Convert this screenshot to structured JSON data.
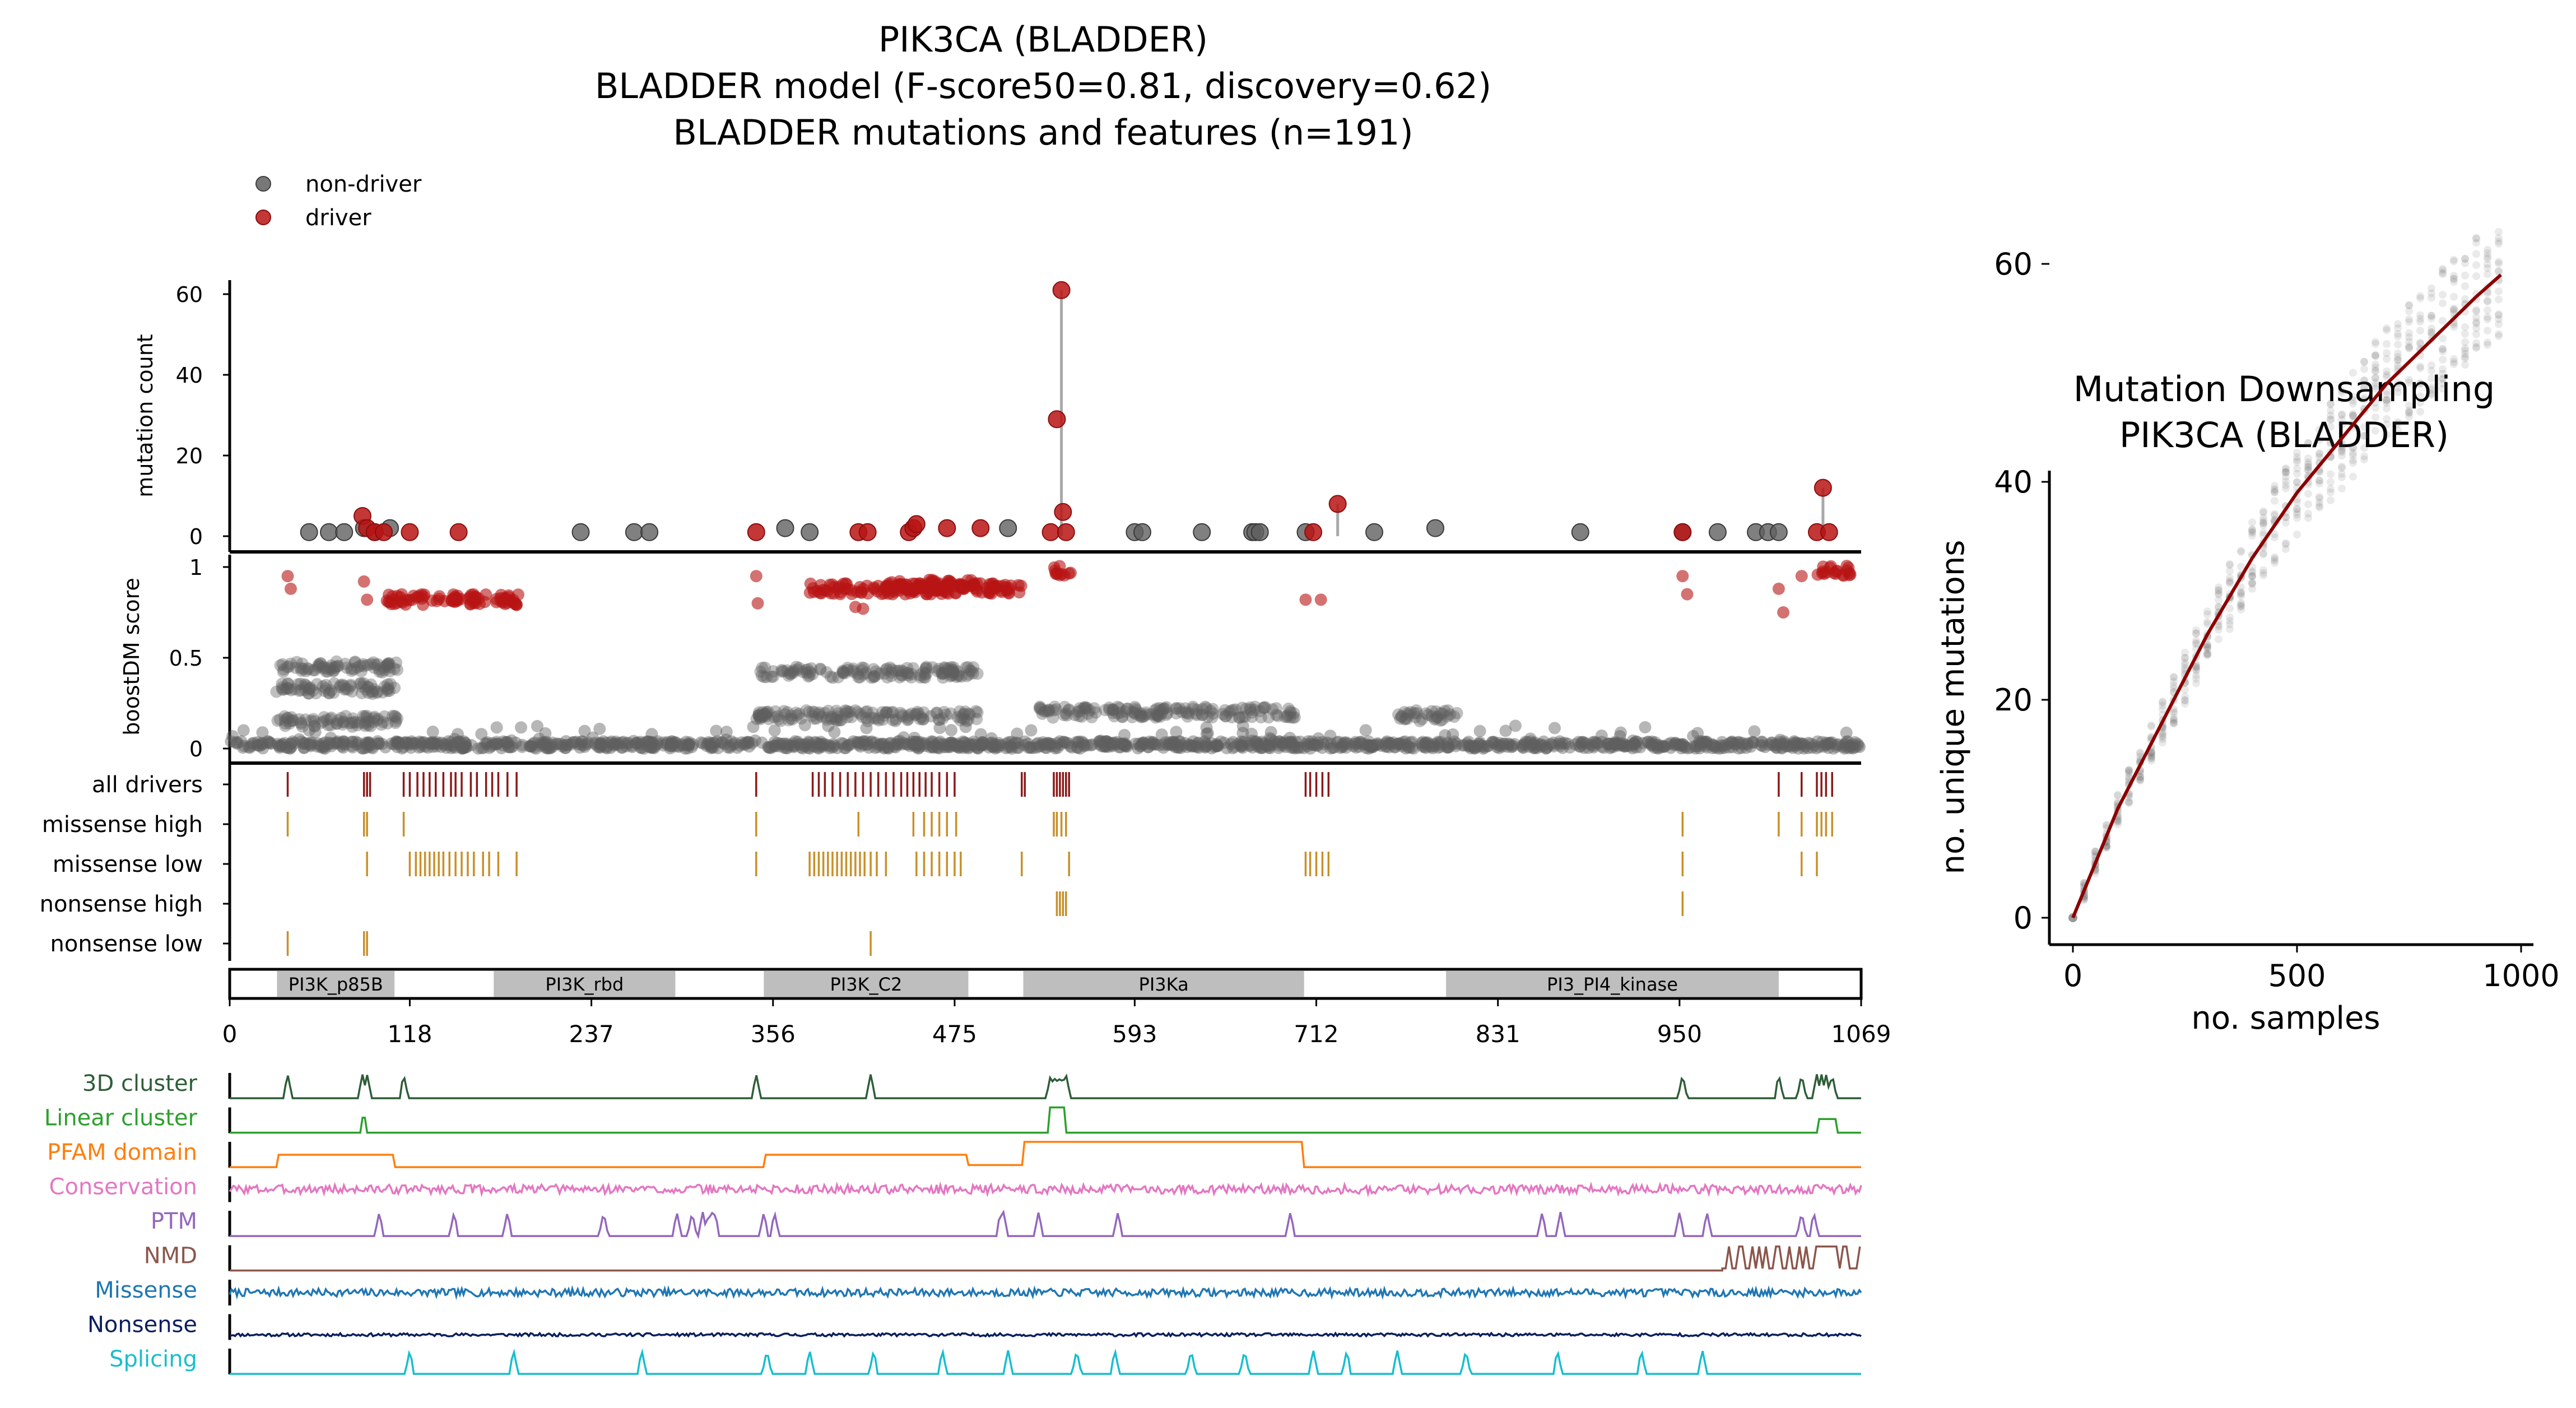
{
  "main_title": {
    "line1": "PIK3CA (BLADDER)",
    "line2": "BLADDER model (F-score50=0.81, discovery=0.62)",
    "line3": "BLADDER mutations and features (n=191)"
  },
  "legend": {
    "placement": "top-left",
    "items": [
      {
        "label": "non-driver",
        "color": "#606060"
      },
      {
        "label": "driver",
        "color": "#b81414"
      }
    ]
  },
  "colors": {
    "driver": "#b81414",
    "non_driver": "#606060",
    "driver_tick": "#8b1a1a",
    "feature_tick": "#c8902a",
    "domain_fill": "#bebebe",
    "fit_line": "#8b0000"
  },
  "chart_data": [
    {
      "id": "mutation-count",
      "type": "scatter",
      "ylabel": "mutation count",
      "ylim": [
        0,
        62
      ],
      "yticks": [
        "0",
        "20",
        "40",
        "60"
      ],
      "xlim": [
        0,
        1069
      ],
      "non_driver_points": [
        [
          52,
          1
        ],
        [
          65,
          1
        ],
        [
          75,
          1
        ],
        [
          88,
          2
        ],
        [
          95,
          1
        ],
        [
          105,
          2
        ],
        [
          230,
          1
        ],
        [
          265,
          1
        ],
        [
          275,
          1
        ],
        [
          364,
          2
        ],
        [
          380,
          1
        ],
        [
          510,
          2
        ],
        [
          593,
          1
        ],
        [
          598,
          1
        ],
        [
          637,
          1
        ],
        [
          670,
          1
        ],
        [
          672,
          1
        ],
        [
          675,
          1
        ],
        [
          705,
          1
        ],
        [
          750,
          1
        ],
        [
          790,
          2
        ],
        [
          885,
          1
        ],
        [
          952,
          1
        ],
        [
          975,
          1
        ],
        [
          1000,
          1
        ],
        [
          1008,
          1
        ],
        [
          1015,
          1
        ]
      ],
      "driver_points": [
        [
          87,
          5
        ],
        [
          90,
          2
        ],
        [
          95,
          1
        ],
        [
          101,
          1
        ],
        [
          118,
          1
        ],
        [
          150,
          1
        ],
        [
          345,
          1
        ],
        [
          412,
          1
        ],
        [
          418,
          1
        ],
        [
          445,
          1
        ],
        [
          448,
          2
        ],
        [
          450,
          3
        ],
        [
          470,
          2
        ],
        [
          492,
          2
        ],
        [
          538,
          1
        ],
        [
          542,
          29
        ],
        [
          545,
          61
        ],
        [
          546,
          6
        ],
        [
          548,
          1
        ],
        [
          710,
          1
        ],
        [
          726,
          8
        ],
        [
          952,
          1
        ],
        [
          1040,
          1
        ],
        [
          1044,
          12
        ],
        [
          1048,
          1
        ]
      ],
      "stems": [
        {
          "x": 545,
          "y": 61
        },
        {
          "x": 726,
          "y": 8
        },
        {
          "x": 1044,
          "y": 12
        }
      ]
    },
    {
      "id": "boostdm-score",
      "type": "scatter",
      "ylabel": "boostDM score",
      "ylim": [
        0,
        1
      ],
      "yticks": [
        "0",
        "0.5",
        "1"
      ],
      "xlim": [
        0,
        1069
      ],
      "clusters": [
        {
          "x0": 30,
          "x1": 110,
          "y": 0.45,
          "kind": "non-driver"
        },
        {
          "x0": 30,
          "x1": 110,
          "y": 0.33,
          "kind": "non-driver"
        },
        {
          "x0": 30,
          "x1": 110,
          "y": 0.15,
          "kind": "non-driver"
        },
        {
          "x0": 345,
          "x1": 490,
          "y": 0.42,
          "kind": "non-driver"
        },
        {
          "x0": 345,
          "x1": 490,
          "y": 0.18,
          "kind": "non-driver"
        },
        {
          "x0": 530,
          "x1": 700,
          "y": 0.2,
          "kind": "non-driver"
        },
        {
          "x0": 765,
          "x1": 805,
          "y": 0.18,
          "kind": "non-driver"
        },
        {
          "x0": 100,
          "x1": 190,
          "y": 0.82,
          "kind": "driver"
        },
        {
          "x0": 380,
          "x1": 520,
          "y": 0.88,
          "kind": "driver"
        },
        {
          "x0": 430,
          "x1": 490,
          "y": 0.9,
          "kind": "driver"
        },
        {
          "x0": 540,
          "x1": 552,
          "y": 0.98,
          "kind": "driver"
        },
        {
          "x0": 1040,
          "x1": 1062,
          "y": 0.98,
          "kind": "driver"
        }
      ],
      "driver_points": [
        [
          38,
          0.95
        ],
        [
          40,
          0.88
        ],
        [
          88,
          0.92
        ],
        [
          90,
          0.82
        ],
        [
          345,
          0.95
        ],
        [
          346,
          0.8
        ],
        [
          410,
          0.78
        ],
        [
          415,
          0.77
        ],
        [
          705,
          0.82
        ],
        [
          715,
          0.82
        ],
        [
          952,
          0.95
        ],
        [
          955,
          0.85
        ],
        [
          1015,
          0.88
        ],
        [
          1018,
          0.75
        ],
        [
          1030,
          0.95
        ]
      ]
    },
    {
      "id": "feature-ticks",
      "type": "table",
      "rows": [
        {
          "label": "all drivers",
          "color": "#8b1a1a",
          "positions": [
            38,
            88,
            90,
            92,
            114,
            118,
            123,
            127,
            131,
            135,
            140,
            145,
            148,
            152,
            158,
            162,
            168,
            172,
            176,
            182,
            188,
            345,
            382,
            386,
            390,
            395,
            400,
            405,
            410,
            415,
            420,
            425,
            430,
            435,
            440,
            444,
            448,
            452,
            456,
            460,
            465,
            470,
            475,
            519,
            521,
            540,
            542,
            544,
            546,
            548,
            550,
            705,
            708,
            712,
            716,
            720,
            1015,
            1030,
            1040,
            1043,
            1046,
            1050
          ]
        },
        {
          "label": "missense high",
          "color": "#c8902a",
          "positions": [
            38,
            88,
            90,
            114,
            345,
            412,
            448,
            455,
            460,
            465,
            470,
            476,
            540,
            542,
            545,
            548,
            952,
            1015,
            1030,
            1040,
            1043,
            1046,
            1050
          ]
        },
        {
          "label": "missense low",
          "color": "#c8902a",
          "positions": [
            90,
            118,
            122,
            125,
            128,
            131,
            134,
            137,
            140,
            144,
            148,
            152,
            156,
            160,
            166,
            170,
            176,
            188,
            345,
            380,
            383,
            386,
            389,
            392,
            395,
            398,
            401,
            404,
            407,
            410,
            413,
            416,
            420,
            424,
            430,
            450,
            455,
            460,
            465,
            470,
            475,
            479,
            519,
            550,
            705,
            708,
            712,
            716,
            720,
            952,
            1030,
            1040
          ]
        },
        {
          "label": "nonsense high",
          "color": "#c8902a",
          "positions": [
            542,
            544,
            546,
            548,
            952
          ]
        },
        {
          "label": "nonsense low",
          "color": "#c8902a",
          "positions": [
            38,
            88,
            90,
            420
          ]
        }
      ]
    },
    {
      "id": "domains",
      "type": "bar",
      "xlim": [
        0,
        1069
      ],
      "xticks": [
        "0",
        "118",
        "237",
        "356",
        "475",
        "593",
        "712",
        "831",
        "950",
        "1069"
      ],
      "domains": [
        {
          "name": "PI3K_p85B",
          "start": 31,
          "end": 108
        },
        {
          "name": "PI3K_rbd",
          "start": 173,
          "end": 292
        },
        {
          "name": "PI3K_C2",
          "start": 350,
          "end": 484
        },
        {
          "name": "PI3Ka",
          "start": 520,
          "end": 704
        },
        {
          "name": "PI3_PI4_kinase",
          "start": 797,
          "end": 1015
        }
      ]
    },
    {
      "id": "feature-tracks",
      "type": "line",
      "xlim": [
        0,
        1069
      ],
      "tracks": [
        {
          "name": "3D cluster",
          "color": "#2e5e38",
          "kind": "spikes",
          "spikes": [
            38,
            87,
            90,
            114,
            345,
            420,
            538,
            540,
            543,
            546,
            548,
            952,
            1015,
            1030,
            1040,
            1043,
            1046,
            1050
          ]
        },
        {
          "name": "Linear cluster",
          "color": "#2ca02c",
          "kind": "steps",
          "steps": [
            [
              87,
              89,
              0.6
            ],
            [
              537,
              548,
              1.0
            ],
            [
              1040,
              1053,
              0.55
            ]
          ]
        },
        {
          "name": "PFAM domain",
          "color": "#ff7f0e",
          "kind": "steps",
          "steps": [
            [
              31,
              108,
              0.5
            ],
            [
              350,
              484,
              0.5
            ],
            [
              484,
              520,
              0.1
            ],
            [
              520,
              704,
              1.0
            ]
          ]
        },
        {
          "name": "Conservation",
          "color": "#e377c2",
          "kind": "noise",
          "amp": 0.35,
          "base": 0.5,
          "seed": 3
        },
        {
          "name": "PTM",
          "color": "#9467bd",
          "kind": "spikes",
          "spikes": [
            98,
            147,
            182,
            245,
            293,
            303,
            310,
            314,
            316,
            318,
            350,
            357,
            505,
            507,
            530,
            582,
            695,
            860,
            872,
            950,
            968,
            1030,
            1038
          ]
        },
        {
          "name": "NMD",
          "color": "#8c564b",
          "kind": "nmd",
          "start": 978
        },
        {
          "name": "Missense",
          "color": "#1f77b4",
          "kind": "noise",
          "amp": 0.3,
          "base": 0.5,
          "seed": 7
        },
        {
          "name": "Nonsense",
          "color": "#0b1e5e",
          "kind": "noise",
          "amp": 0.12,
          "base": 0.2,
          "seed": 11
        },
        {
          "name": "Splicing",
          "color": "#17becf",
          "kind": "spikes",
          "spikes": [
            118,
            186,
            270,
            352,
            380,
            422,
            467,
            510,
            555,
            580,
            630,
            665,
            710,
            732,
            765,
            810,
            870,
            925,
            965
          ]
        }
      ]
    },
    {
      "id": "downsampling",
      "type": "scatter",
      "title_line1": "Mutation Downsampling",
      "title_line2": "PIK3CA (BLADDER)",
      "xlabel": "no. samples",
      "ylabel": "no. unique mutations",
      "xlim": [
        -50,
        1000
      ],
      "ylim": [
        -3,
        62
      ],
      "xticks": [
        "0",
        "500",
        "1000"
      ],
      "yticks": [
        "0",
        "20",
        "40",
        "60"
      ],
      "fit_curve": [
        [
          0,
          0
        ],
        [
          100,
          10
        ],
        [
          200,
          18
        ],
        [
          300,
          26
        ],
        [
          400,
          33
        ],
        [
          500,
          39
        ],
        [
          600,
          44
        ],
        [
          700,
          49
        ],
        [
          800,
          53
        ],
        [
          900,
          57
        ],
        [
          955,
          59
        ]
      ]
    }
  ]
}
